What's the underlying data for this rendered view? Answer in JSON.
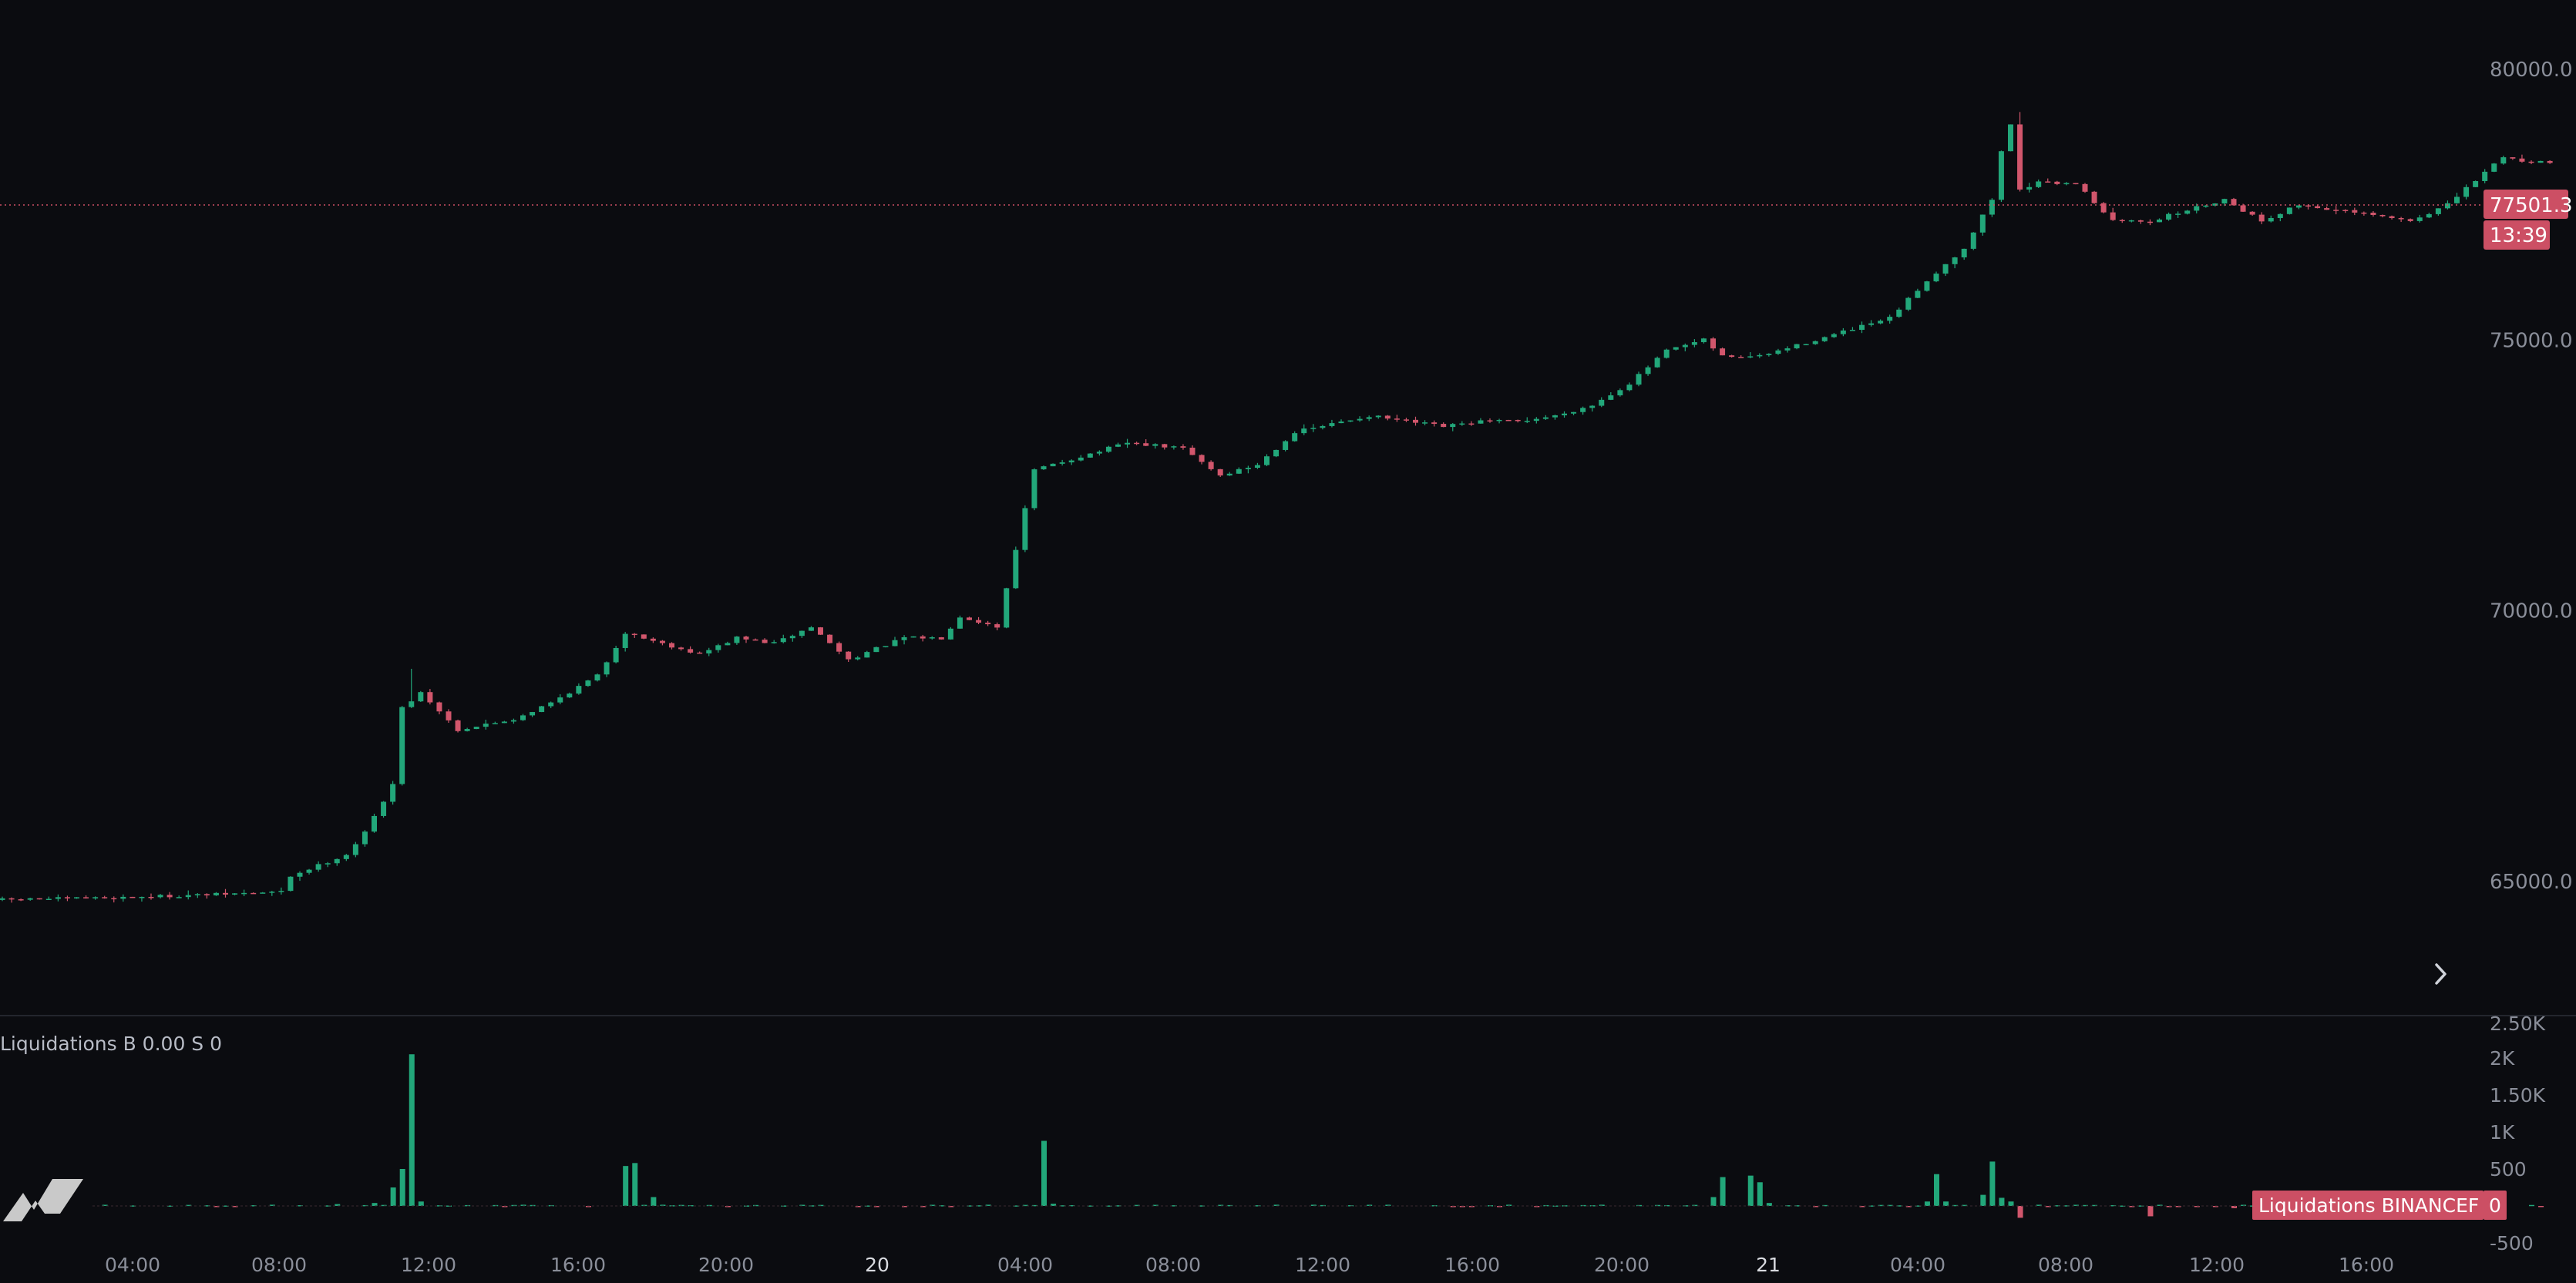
{
  "colors": {
    "background": "#0b0c10",
    "up": "#22a77a",
    "down": "#d1566c",
    "axis_text": "#8a8e99",
    "separator": "#23262e",
    "price_tag": "#cc4f64"
  },
  "price_axis": {
    "ticks": [
      "80000.0",
      "75000.0",
      "70000.0",
      "65000.0"
    ]
  },
  "liq_axis": {
    "ticks": [
      "2.50K",
      "2K",
      "1.50K",
      "1K",
      "500",
      "-500"
    ]
  },
  "time_axis": {
    "labels": [
      "04:00",
      "08:00",
      "12:00",
      "16:00",
      "20:00",
      "20",
      "04:00",
      "08:00",
      "12:00",
      "16:00",
      "20:00",
      "21",
      "04:00",
      "08:00",
      "12:00",
      "16:00"
    ]
  },
  "current_price": {
    "value": "77501.3",
    "countdown": "13:39"
  },
  "liquidations": {
    "legend": "Liquidations B 0.00  S 0",
    "tag_label": "Liquidations BINANCEF",
    "tag_value": "0"
  },
  "icons": {
    "scroll": "chevron-right-icon",
    "logo": "tradingview-logo-icon"
  },
  "chart_data": [
    {
      "type": "candlestick",
      "title": "",
      "x_range": [
        "00:00",
        "19:00 (day 21)"
      ],
      "y_range": [
        63500,
        81000
      ],
      "x_unit": "hours",
      "timeframe_minutes": 15,
      "anchors": [
        [
          0,
          64660
        ],
        [
          3,
          64700
        ],
        [
          6,
          64760
        ],
        [
          7.75,
          64810
        ],
        [
          8,
          65100
        ],
        [
          9.5,
          65500
        ],
        [
          10,
          65900
        ],
        [
          10.75,
          66800
        ],
        [
          11,
          68200
        ],
        [
          11.5,
          68500
        ],
        [
          12.5,
          67800
        ],
        [
          14,
          68000
        ],
        [
          15,
          68300
        ],
        [
          16.25,
          68800
        ],
        [
          17,
          69600
        ],
        [
          18,
          69400
        ],
        [
          19,
          69200
        ],
        [
          20,
          69500
        ],
        [
          21,
          69400
        ],
        [
          22,
          69700
        ],
        [
          23,
          69100
        ],
        [
          24.5,
          69500
        ],
        [
          25.5,
          69500
        ],
        [
          26,
          69900
        ],
        [
          27,
          69700
        ],
        [
          28,
          72600
        ],
        [
          29.5,
          72900
        ],
        [
          30.5,
          73100
        ],
        [
          32,
          73000
        ],
        [
          33,
          72500
        ],
        [
          34,
          72700
        ],
        [
          35,
          73300
        ],
        [
          37,
          73600
        ],
        [
          38,
          73500
        ],
        [
          39,
          73400
        ],
        [
          40,
          73500
        ],
        [
          41,
          73500
        ],
        [
          42,
          73600
        ],
        [
          43,
          73800
        ],
        [
          44,
          74200
        ],
        [
          45,
          74800
        ],
        [
          46,
          75000
        ],
        [
          46.5,
          74700
        ],
        [
          47.5,
          74700
        ],
        [
          49,
          75000
        ],
        [
          50,
          75200
        ],
        [
          51,
          75400
        ],
        [
          52,
          76100
        ],
        [
          53,
          76700
        ],
        [
          53.75,
          77600
        ],
        [
          54.2,
          79200
        ],
        [
          54.5,
          77800
        ],
        [
          55,
          77900
        ],
        [
          56,
          77900
        ],
        [
          57,
          77200
        ],
        [
          58,
          77200
        ],
        [
          59,
          77400
        ],
        [
          60,
          77600
        ],
        [
          61,
          77200
        ],
        [
          62,
          77500
        ],
        [
          63,
          77400
        ],
        [
          64,
          77300
        ],
        [
          65,
          77200
        ],
        [
          66,
          77500
        ],
        [
          67,
          78100
        ],
        [
          67.5,
          78400
        ],
        [
          68,
          78300
        ],
        [
          68.5,
          78300
        ]
      ]
    },
    {
      "type": "bar",
      "title": "",
      "series": [
        {
          "name": "B",
          "spikes": [
            [
              8,
              10
            ],
            [
              9,
              25
            ],
            [
              10,
              40
            ],
            [
              10.5,
              250
            ],
            [
              10.75,
              500
            ],
            [
              11,
              2050
            ],
            [
              11.25,
              60
            ],
            [
              16.75,
              540
            ],
            [
              17,
              580
            ],
            [
              17.5,
              120
            ],
            [
              28,
              880
            ],
            [
              28.25,
              30
            ],
            [
              46,
              120
            ],
            [
              46.25,
              390
            ],
            [
              47,
              410
            ],
            [
              47.25,
              320
            ],
            [
              47.5,
              40
            ],
            [
              51.75,
              60
            ],
            [
              52,
              430
            ],
            [
              52.25,
              60
            ],
            [
              53.25,
              150
            ],
            [
              53.5,
              600
            ],
            [
              53.75,
              110
            ],
            [
              54,
              60
            ]
          ]
        },
        {
          "name": "S",
          "spikes": [
            [
              54.25,
              -160
            ],
            [
              57.75,
              -140
            ],
            [
              60,
              -30
            ],
            [
              65,
              -20
            ]
          ]
        }
      ],
      "y_range": [
        -500,
        2500
      ]
    }
  ]
}
